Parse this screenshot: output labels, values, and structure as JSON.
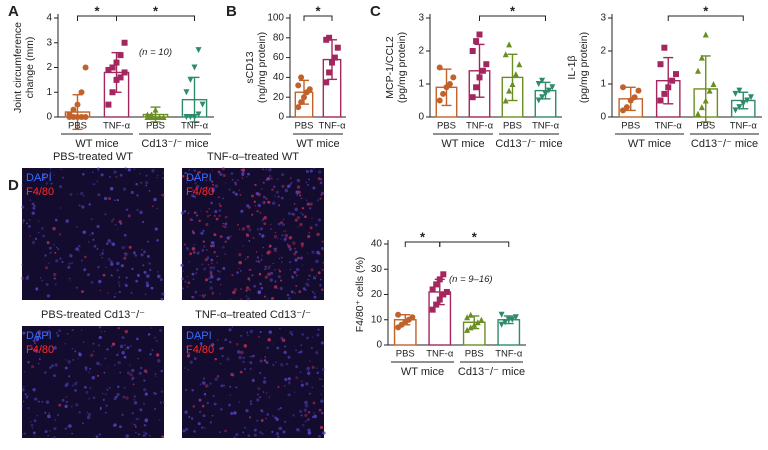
{
  "figure": {
    "panel_labels": [
      "A",
      "B",
      "C",
      "D"
    ],
    "images": [
      {
        "title": "PBS-treated WT",
        "stains": [
          "DAPI",
          "F4/80"
        ]
      },
      {
        "title": "TNF-α–treated WT",
        "stains": [
          "DAPI",
          "F4/80"
        ]
      },
      {
        "title": "PBS-treated Cd13⁻/⁻",
        "stains": [
          "DAPI",
          "F4/80"
        ]
      },
      {
        "title": "TNF-α–treated Cd13⁻/⁻",
        "stains": [
          "DAPI",
          "F4/80"
        ]
      }
    ]
  },
  "chart_data": [
    {
      "type": "bar",
      "ylabel": [
        "Joint circumference",
        "change (mm)"
      ],
      "categories": [
        "PBS",
        "TNF-α",
        "PBS",
        "TNF-α"
      ],
      "groups": [
        "WT mice",
        "Cd13⁻/⁻ mice"
      ],
      "colors": [
        "#c0622a",
        "#a3275e",
        "#6b8e23",
        "#2e8b6a"
      ],
      "markers": [
        "circle",
        "square",
        "triangle-up",
        "triangle-down"
      ],
      "values": [
        0.2,
        1.8,
        0.1,
        0.7
      ],
      "errors": [
        0.7,
        0.8,
        0.3,
        0.9
      ],
      "points": [
        [
          0,
          0,
          0,
          0,
          0,
          0.1,
          0.3,
          0.5,
          1.0,
          2.0
        ],
        [
          0.5,
          1.0,
          1.5,
          1.6,
          1.8,
          1.9,
          2.0,
          2.2,
          2.5,
          3.0
        ],
        [
          0,
          0,
          0,
          0,
          0,
          0.1,
          0.1,
          0.3
        ],
        [
          0,
          0,
          0,
          0.1,
          0.5,
          1.0,
          1.5,
          2.0,
          2.7
        ]
      ],
      "ylim": [
        0,
        4
      ],
      "yticks": [
        0,
        1,
        2,
        3,
        4
      ],
      "significance": [
        {
          "label": "*",
          "pair": [
            0,
            1
          ]
        },
        {
          "label": "*",
          "pair": [
            1,
            3
          ]
        }
      ],
      "annotation": "(n = 10)"
    },
    {
      "type": "bar",
      "ylabel": [
        "sCD13",
        "(ng/mg protein)"
      ],
      "categories": [
        "PBS",
        "TNF-α"
      ],
      "groups": [
        "WT mice"
      ],
      "colors": [
        "#c0622a",
        "#a3275e"
      ],
      "markers": [
        "circle",
        "square"
      ],
      "values": [
        25,
        58
      ],
      "errors": [
        12,
        20
      ],
      "points": [
        [
          10,
          15,
          20,
          25,
          28,
          32,
          40
        ],
        [
          35,
          45,
          55,
          60,
          70,
          78,
          80
        ]
      ],
      "ylim": [
        0,
        100
      ],
      "yticks": [
        0,
        20,
        40,
        60,
        80,
        100
      ],
      "significance": [
        {
          "label": "*",
          "pair": [
            0,
            1
          ]
        }
      ]
    },
    {
      "type": "bar",
      "ylabel": [
        "MCP-1/CCL2",
        "(pg/mg protein)"
      ],
      "categories": [
        "PBS",
        "TNF-α",
        "PBS",
        "TNF-α"
      ],
      "groups": [
        "WT mice",
        "Cd13⁻/⁻ mice"
      ],
      "colors": [
        "#c0622a",
        "#a3275e",
        "#6b8e23",
        "#2e8b6a"
      ],
      "markers": [
        "circle",
        "square",
        "triangle-up",
        "triangle-down"
      ],
      "values": [
        0.9,
        1.4,
        1.2,
        0.8
      ],
      "errors": [
        0.55,
        0.8,
        0.7,
        0.25
      ],
      "points": [
        [
          0.5,
          0.7,
          0.9,
          1.0,
          1.2,
          1.5
        ],
        [
          0.6,
          0.9,
          1.2,
          1.4,
          1.6,
          2.0,
          2.3,
          2.5
        ],
        [
          0.5,
          0.8,
          1.0,
          1.3,
          1.6,
          1.9,
          2.2
        ],
        [
          0.5,
          0.6,
          0.7,
          0.8,
          0.9,
          1.0,
          1.1
        ]
      ],
      "ylim": [
        0,
        3
      ],
      "yticks": [
        0,
        1,
        2,
        3
      ],
      "significance": [
        {
          "label": "*",
          "pair": [
            1,
            3
          ]
        }
      ]
    },
    {
      "type": "bar",
      "ylabel": [
        "IL-1β",
        "(pg/mg protein)"
      ],
      "categories": [
        "PBS",
        "TNF-α",
        "PBS",
        "TNF-α"
      ],
      "groups": [
        "WT mice",
        "Cd13⁻/⁻ mice"
      ],
      "colors": [
        "#c0622a",
        "#a3275e",
        "#6b8e23",
        "#2e8b6a"
      ],
      "markers": [
        "circle",
        "square",
        "triangle-up",
        "triangle-down"
      ],
      "values": [
        0.55,
        1.1,
        0.85,
        0.5
      ],
      "errors": [
        0.35,
        0.7,
        1.0,
        0.25
      ],
      "points": [
        [
          0.2,
          0.3,
          0.5,
          0.6,
          0.8,
          0.9
        ],
        [
          0.5,
          0.7,
          0.9,
          1.1,
          1.3,
          1.6,
          2.1
        ],
        [
          0.1,
          0.3,
          0.5,
          0.8,
          1.0,
          1.4,
          1.8,
          2.5
        ],
        [
          0.2,
          0.3,
          0.4,
          0.5,
          0.6,
          0.7,
          0.8
        ]
      ],
      "ylim": [
        0,
        3
      ],
      "yticks": [
        0,
        1,
        2,
        3
      ],
      "significance": [
        {
          "label": "*",
          "pair": [
            1,
            3
          ]
        }
      ]
    },
    {
      "type": "bar",
      "ylabel": [
        "F4/80⁺ cells (%)"
      ],
      "categories": [
        "PBS",
        "TNF-α",
        "PBS",
        "TNF-α"
      ],
      "groups": [
        "WT mice",
        "Cd13⁻/⁻ mice"
      ],
      "colors": [
        "#c0622a",
        "#a3275e",
        "#6b8e23",
        "#2e8b6a"
      ],
      "markers": [
        "circle",
        "square",
        "triangle-up",
        "triangle-down"
      ],
      "values": [
        10,
        21,
        9,
        10
      ],
      "errors": [
        2,
        5,
        2.5,
        1.5
      ],
      "points": [
        [
          7,
          8,
          9,
          10,
          11,
          12
        ],
        [
          14,
          16,
          18,
          20,
          21,
          22,
          24,
          26,
          28
        ],
        [
          6,
          7,
          8,
          9,
          10,
          11,
          12
        ],
        [
          8,
          9,
          10,
          10,
          11,
          12
        ]
      ],
      "ylim": [
        0,
        40
      ],
      "yticks": [
        0,
        10,
        20,
        30,
        40
      ],
      "significance": [
        {
          "label": "*",
          "pair": [
            0,
            1
          ]
        },
        {
          "label": "*",
          "pair": [
            1,
            3
          ]
        }
      ],
      "annotation": "(n = 9–16)"
    }
  ]
}
